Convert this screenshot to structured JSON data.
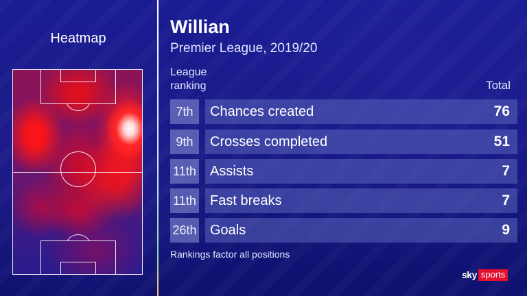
{
  "heatmap": {
    "title": "Heatmap"
  },
  "player": {
    "name": "Willian",
    "subtitle": "Premier League, 2019/20"
  },
  "table": {
    "rank_header_line1": "League",
    "rank_header_line2": "ranking",
    "total_header": "Total",
    "rows": [
      {
        "rank": "7th",
        "label": "Chances created",
        "value": "76"
      },
      {
        "rank": "9th",
        "label": "Crosses completed",
        "value": "51"
      },
      {
        "rank": "11th",
        "label": "Assists",
        "value": "7"
      },
      {
        "rank": "11th",
        "label": "Fast breaks",
        "value": "7"
      },
      {
        "rank": "26th",
        "label": "Goals",
        "value": "9"
      }
    ]
  },
  "footnote": "Rankings factor all positions",
  "logo": {
    "sky": "sky",
    "sports": "sports"
  },
  "colors": {
    "background": "#15178a",
    "heat": "#ff1a1a",
    "logo_red": "#e3102d"
  }
}
